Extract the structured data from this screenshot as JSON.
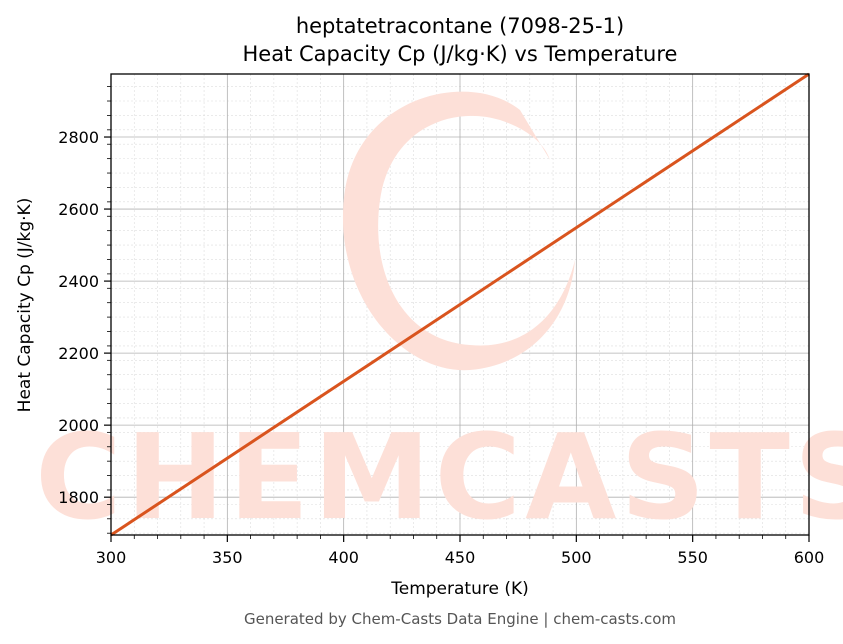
{
  "colors": {
    "line": "#d9541e",
    "watermark": "#fde0d8",
    "grid_major": "#b0b0b0",
    "grid_minor": "#dddddd",
    "footer": "#555555"
  },
  "watermark": {
    "text": "CHEMCASTS"
  },
  "footer": {
    "text": "Generated by Chem-Casts Data Engine | chem-casts.com"
  },
  "chart_data": {
    "type": "line",
    "title": "heptatetracontane (7098-25-1)",
    "subtitle": "Heat Capacity Cp (J/kg·K) vs Temperature",
    "xlabel": "Temperature (K)",
    "ylabel": "Heat Capacity Cp (J/kg·K)",
    "xlim": [
      300,
      600
    ],
    "ylim": [
      1695,
      2975
    ],
    "xticks": [
      300,
      350,
      400,
      450,
      500,
      550,
      600
    ],
    "yticks": [
      1800,
      2000,
      2200,
      2400,
      2600,
      2800
    ],
    "grid": true,
    "legend": "none",
    "series": [
      {
        "x": [
          300,
          600
        ],
        "y": [
          1695,
          2975
        ]
      }
    ]
  }
}
